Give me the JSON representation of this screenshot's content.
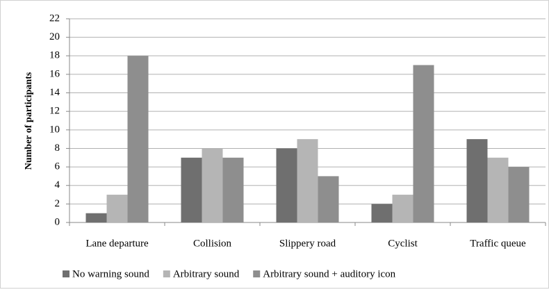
{
  "chart_data": {
    "type": "bar",
    "ylabel": "Number of participants",
    "categories": [
      "Lane departure",
      "Collision",
      "Slippery road",
      "Cyclist",
      "Traffic queue"
    ],
    "series": [
      {
        "name": "No warning sound",
        "color": "#6f6f6f",
        "values": [
          1,
          7,
          8,
          2,
          9
        ]
      },
      {
        "name": "Arbitrary sound",
        "color": "#b5b5b5",
        "values": [
          3,
          8,
          9,
          3,
          7
        ]
      },
      {
        "name": "Arbitrary sound + auditory icon",
        "color": "#8e8e8e",
        "values": [
          18,
          7,
          5,
          17,
          6
        ]
      }
    ],
    "ylim": [
      0,
      22
    ],
    "yticks": [
      0,
      2,
      4,
      6,
      8,
      10,
      12,
      14,
      16,
      18,
      20,
      22
    ],
    "grid": true,
    "legend": "bottom"
  }
}
